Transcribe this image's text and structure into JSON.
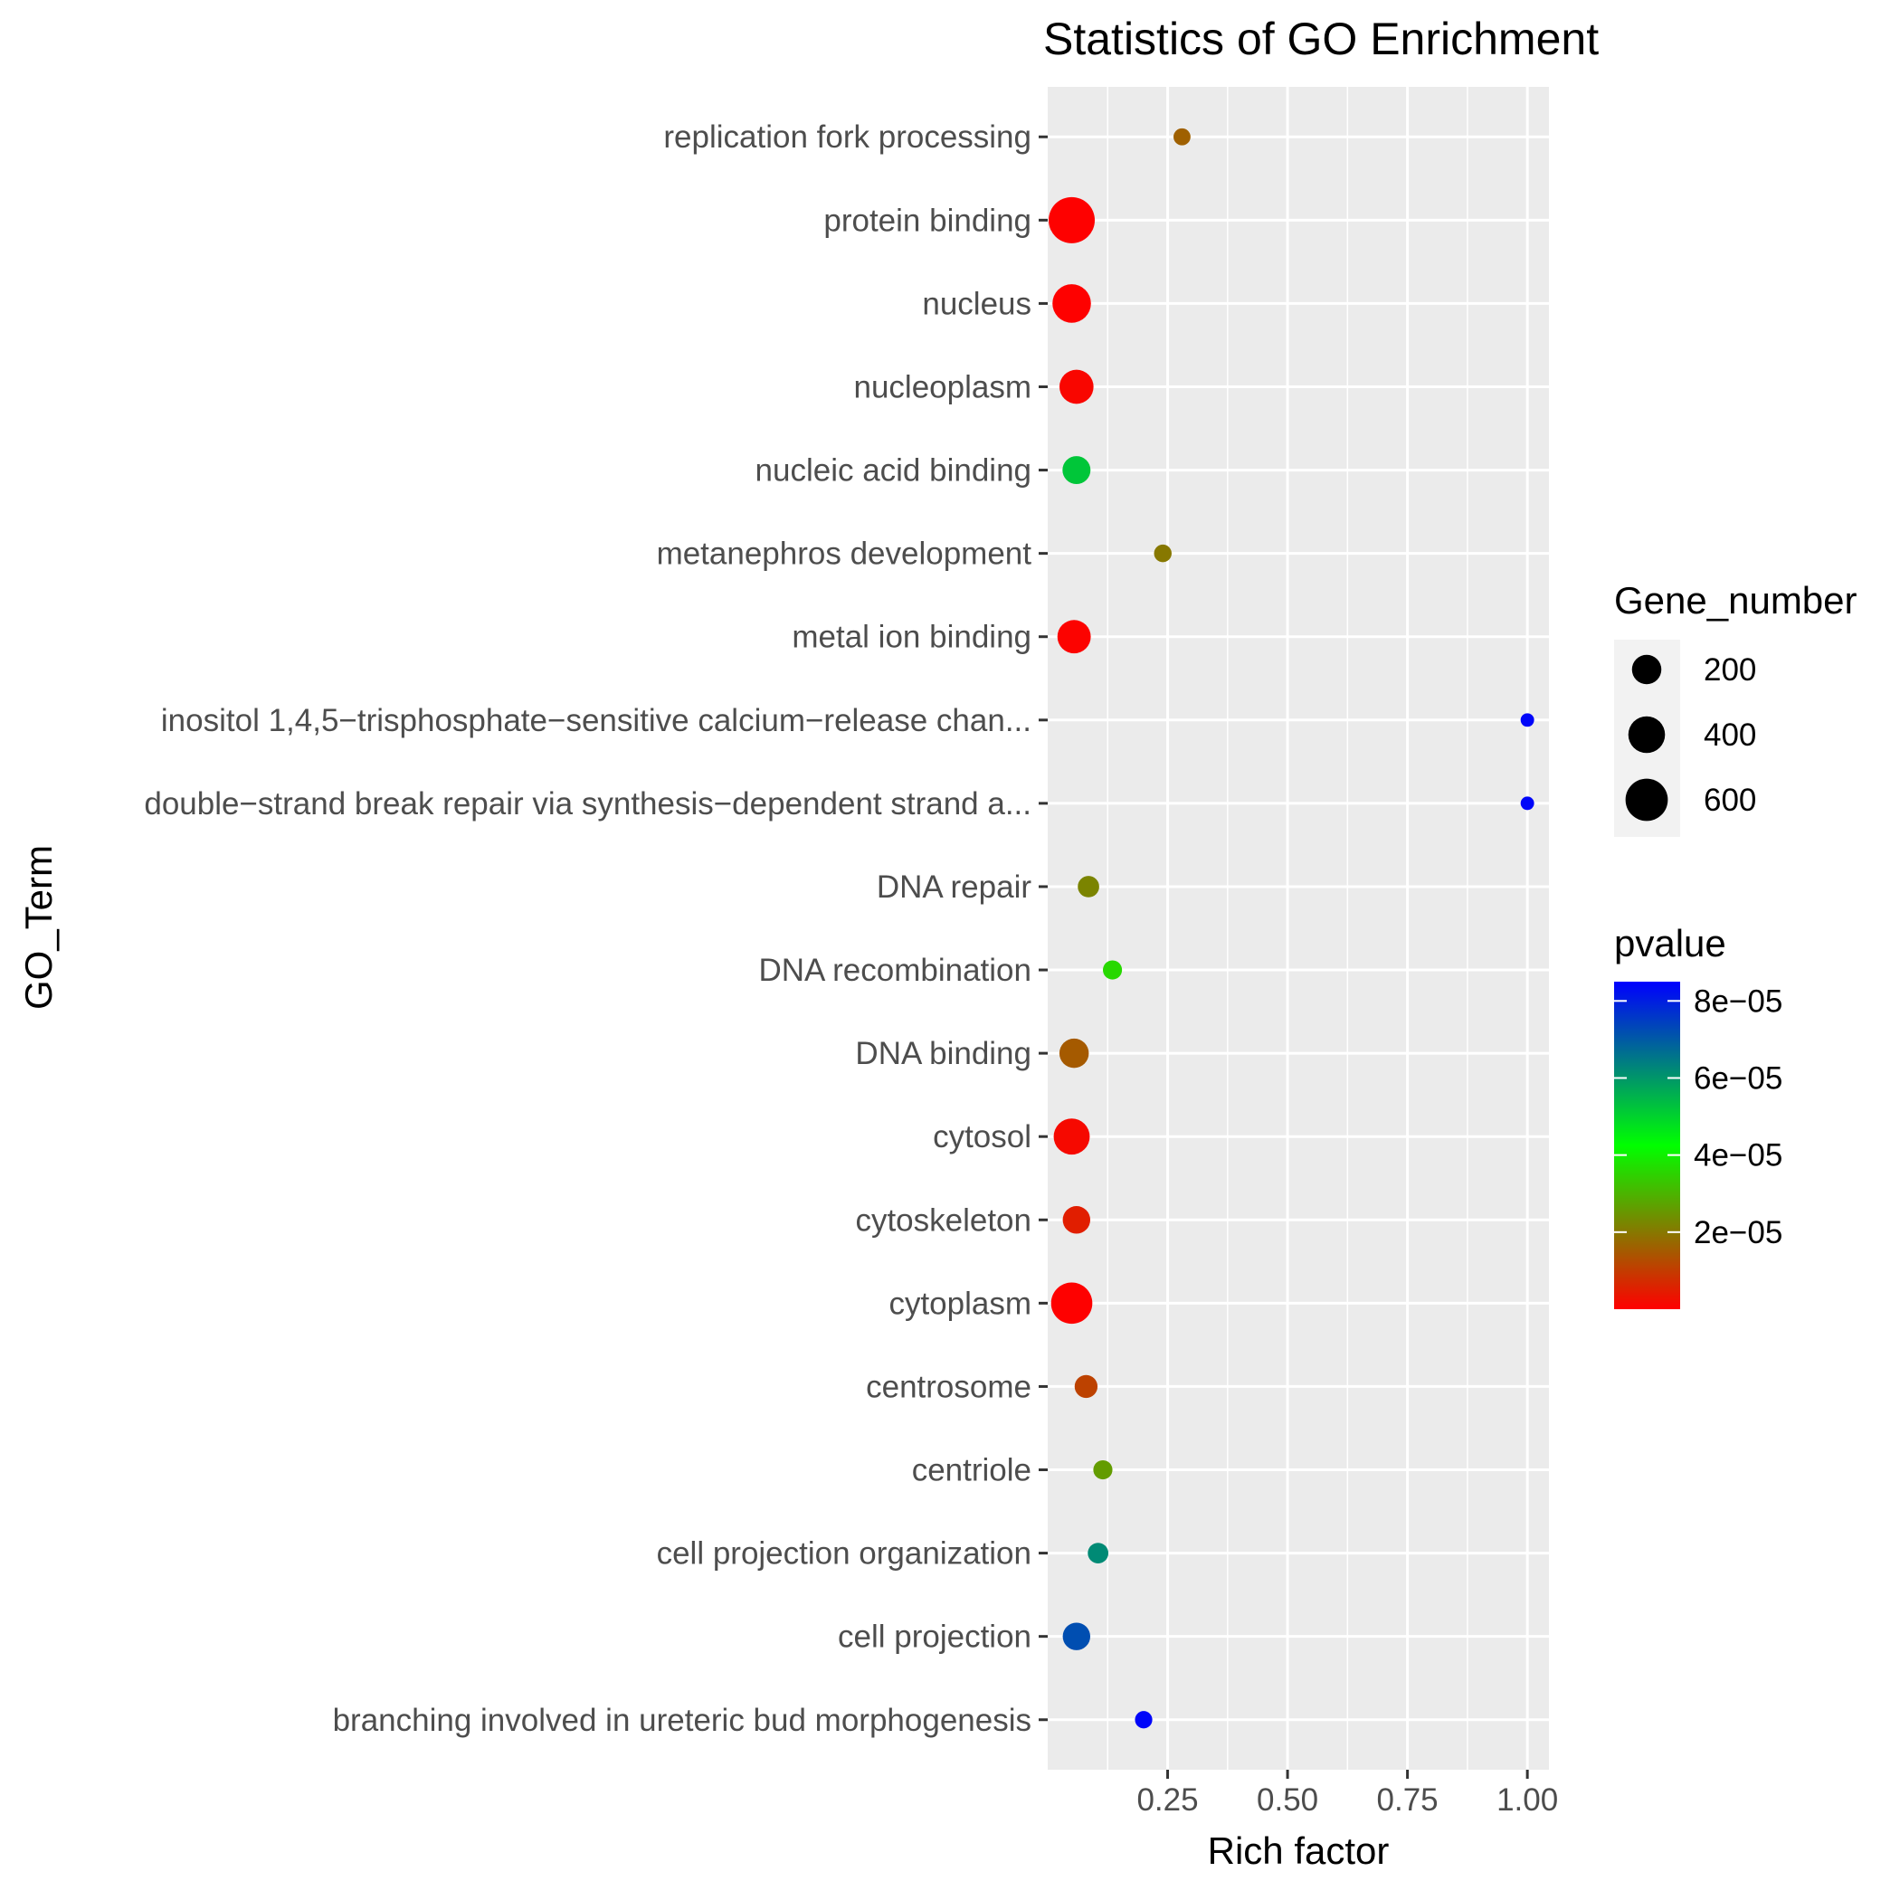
{
  "chart_data": {
    "type": "scatter",
    "title": "Statistics of GO Enrichment",
    "xlabel": "Rich factor",
    "ylabel": "GO_Term",
    "xlim": [
      0.0,
      1.045
    ],
    "xticks": [
      0.25,
      0.5,
      0.75,
      1.0
    ],
    "xtick_labels": [
      "0.25",
      "0.50",
      "0.75",
      "1.00"
    ],
    "grid": true,
    "legend_position": "right",
    "size_legend": {
      "title": "Gene_number",
      "values": [
        200,
        400,
        600
      ],
      "labels": [
        "200",
        "400",
        "600"
      ]
    },
    "color_legend": {
      "title": "pvalue",
      "range": [
        0,
        8.5e-05
      ],
      "ticks": [
        2e-05,
        4e-05,
        6e-05,
        8e-05
      ],
      "labels": [
        "2e−05",
        "4e−05",
        "6e−05",
        "8e−05"
      ],
      "low_color": "#ff0000",
      "mid_color": "#00ff00",
      "high_color": "#0000ff"
    },
    "terms": [
      "replication fork processing",
      "protein binding",
      "nucleus",
      "nucleoplasm",
      "nucleic acid binding",
      "metanephros development",
      "metal ion binding",
      "inositol 1,4,5−trisphosphate−sensitive calcium−release chan...",
      "double−strand break repair via synthesis−dependent strand a...",
      "DNA repair",
      "DNA recombination",
      "DNA binding",
      "cytosol",
      "cytoskeleton",
      "cytoplasm",
      "centrosome",
      "centriole",
      "cell projection organization",
      "cell projection",
      "branching involved in ureteric bud morphogenesis"
    ],
    "points": [
      {
        "term": "replication fork processing",
        "rich_factor": 0.28,
        "gene_number": 18,
        "pvalue": 1.6e-05
      },
      {
        "term": "protein binding",
        "rich_factor": 0.05,
        "gene_number": 760,
        "pvalue": 1e-07
      },
      {
        "term": "nucleus",
        "rich_factor": 0.05,
        "gene_number": 460,
        "pvalue": 1e-07
      },
      {
        "term": "nucleoplasm",
        "rich_factor": 0.06,
        "gene_number": 320,
        "pvalue": 1e-06
      },
      {
        "term": "nucleic acid binding",
        "rich_factor": 0.06,
        "gene_number": 170,
        "pvalue": 5.2e-05
      },
      {
        "term": "metanephros development",
        "rich_factor": 0.24,
        "gene_number": 22,
        "pvalue": 2e-05
      },
      {
        "term": "metal ion binding",
        "rich_factor": 0.055,
        "gene_number": 300,
        "pvalue": 5e-07
      },
      {
        "term": "inositol 1,4,5−trisphosphate−sensitive calcium−release chan...",
        "rich_factor": 1.0,
        "gene_number": 2,
        "pvalue": 8.4e-05
      },
      {
        "term": "double−strand break repair via synthesis−dependent strand a...",
        "rich_factor": 1.0,
        "gene_number": 2,
        "pvalue": 8.4e-05
      },
      {
        "term": "DNA repair",
        "rich_factor": 0.085,
        "gene_number": 60,
        "pvalue": 2.2e-05
      },
      {
        "term": "DNA recombination",
        "rich_factor": 0.135,
        "gene_number": 35,
        "pvalue": 3.6e-05
      },
      {
        "term": "DNA binding",
        "rich_factor": 0.055,
        "gene_number": 200,
        "pvalue": 1.5e-05
      },
      {
        "term": "cytosol",
        "rich_factor": 0.05,
        "gene_number": 380,
        "pvalue": 1.5e-06
      },
      {
        "term": "cytoskeleton",
        "rich_factor": 0.06,
        "gene_number": 160,
        "pvalue": 5e-06
      },
      {
        "term": "cytoplasm",
        "rich_factor": 0.05,
        "gene_number": 560,
        "pvalue": 2e-07
      },
      {
        "term": "centrosome",
        "rich_factor": 0.08,
        "gene_number": 80,
        "pvalue": 1.1e-05
      },
      {
        "term": "centriole",
        "rich_factor": 0.115,
        "gene_number": 35,
        "pvalue": 2.6e-05
      },
      {
        "term": "cell projection organization",
        "rich_factor": 0.105,
        "gene_number": 50,
        "pvalue": 6.2e-05
      },
      {
        "term": "cell projection",
        "rich_factor": 0.06,
        "gene_number": 160,
        "pvalue": 7.2e-05
      },
      {
        "term": "branching involved in ureteric bud morphogenesis",
        "rich_factor": 0.2,
        "gene_number": 20,
        "pvalue": 8.4e-05
      }
    ]
  }
}
